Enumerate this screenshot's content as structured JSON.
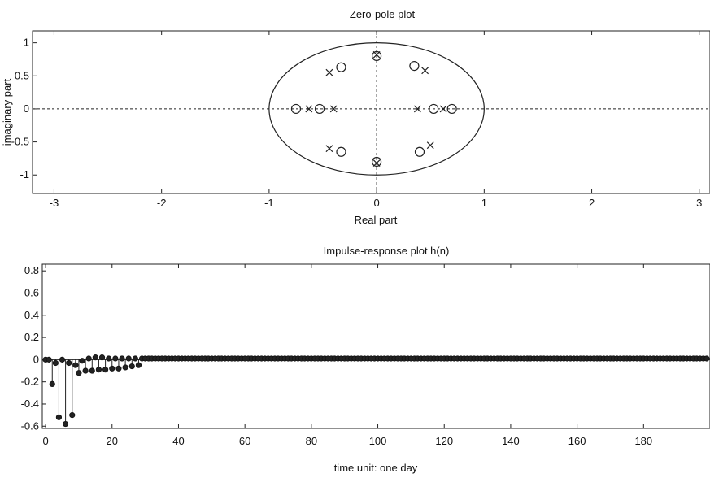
{
  "chart_data": [
    {
      "type": "scatter",
      "title": "Zero-pole plot",
      "xlabel": "Real part",
      "ylabel": "imaginary part",
      "xlim": [
        -3.2,
        3.1
      ],
      "ylim": [
        -1.28,
        1.18
      ],
      "xticks": [
        -3,
        -2,
        -1,
        0,
        1,
        2,
        3
      ],
      "xtick_labels": [
        "-3",
        "-2",
        "-1",
        "0",
        "1",
        "2",
        "3"
      ],
      "yticks": [
        1,
        0.5,
        0,
        -0.5,
        -1
      ],
      "ytick_labels": [
        "1",
        "0.5",
        "0",
        "-0.5",
        "-1"
      ],
      "unit_circle": true,
      "grid": false,
      "series": [
        {
          "marker": "o",
          "points": [
            [
              -0.75,
              0
            ],
            [
              -0.53,
              0
            ],
            [
              0.53,
              0
            ],
            [
              0.7,
              0
            ],
            [
              -0.33,
              0.63
            ],
            [
              0.35,
              0.65
            ],
            [
              -0.33,
              -0.65
            ],
            [
              0.4,
              -0.65
            ],
            [
              0,
              0.8
            ],
            [
              0,
              -0.8
            ]
          ]
        },
        {
          "marker": "x",
          "points": [
            [
              -0.63,
              0
            ],
            [
              -0.4,
              0
            ],
            [
              0.38,
              0
            ],
            [
              0.62,
              0
            ],
            [
              -0.44,
              0.55
            ],
            [
              0.45,
              0.58
            ],
            [
              -0.44,
              -0.6
            ],
            [
              0.5,
              -0.55
            ],
            [
              0,
              0.82
            ],
            [
              0,
              -0.82
            ]
          ]
        }
      ]
    },
    {
      "type": "stem",
      "title": "Impulse-response plot h(n)",
      "xlabel": "time unit: one day",
      "ylabel": "",
      "xlim": [
        -1,
        200
      ],
      "ylim": [
        -0.62,
        0.86
      ],
      "xticks": [
        0,
        20,
        40,
        60,
        80,
        100,
        120,
        140,
        160,
        180
      ],
      "xtick_labels": [
        "0",
        "20",
        "40",
        "60",
        "80",
        "100",
        "120",
        "140",
        "160",
        "180"
      ],
      "yticks": [
        0.8,
        0.6,
        0.4,
        0.2,
        0,
        -0.2,
        -0.4,
        -0.6
      ],
      "ytick_labels": [
        "0.8",
        "0.6",
        "0.4",
        "0.2",
        "0",
        "-0.2",
        "-0.4",
        "-0.6"
      ],
      "grid": false,
      "early_values": [
        0,
        0,
        -0.22,
        -0.03,
        -0.52,
        0,
        -0.58,
        -0.03,
        -0.5,
        -0.05,
        -0.12,
        -0.01,
        -0.1,
        0.01,
        -0.1,
        0.02,
        -0.09,
        0.02,
        -0.09,
        0.01,
        -0.08,
        0.01,
        -0.08,
        0.01,
        -0.07,
        0.01,
        -0.06,
        0.01,
        -0.05
      ],
      "tail_value": 0.01,
      "n_points": 200
    }
  ]
}
